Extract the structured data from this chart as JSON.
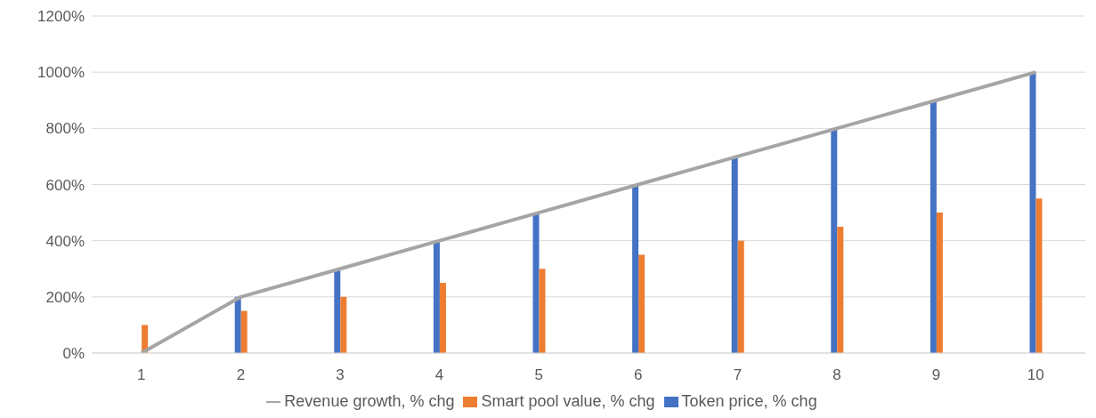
{
  "chart_data": {
    "type": "bar",
    "categories": [
      "1",
      "2",
      "3",
      "4",
      "5",
      "6",
      "7",
      "8",
      "9",
      "10"
    ],
    "series": [
      {
        "name": "Token price, % chg",
        "color": "#4472c4",
        "values": [
          0,
          200,
          300,
          400,
          500,
          600,
          700,
          800,
          900,
          1000
        ]
      },
      {
        "name": "Smart pool value, % chg",
        "color": "#ed7d31",
        "values": [
          100,
          150,
          200,
          250,
          300,
          350,
          400,
          450,
          500,
          550
        ]
      },
      {
        "name": "Revenue growth, % chg",
        "type": "line",
        "color": "#a5a5a5",
        "values": [
          0,
          200,
          300,
          400,
          500,
          600,
          700,
          800,
          900,
          1000
        ]
      }
    ],
    "ylim": [
      0,
      1200
    ],
    "yticks": [
      {
        "value": 0,
        "label": "0%"
      },
      {
        "value": 200,
        "label": "200%"
      },
      {
        "value": 400,
        "label": "400%"
      },
      {
        "value": 600,
        "label": "600%"
      },
      {
        "value": 800,
        "label": "800%"
      },
      {
        "value": 1000,
        "label": "1000%"
      },
      {
        "value": 1200,
        "label": "1200%"
      }
    ],
    "grid": "y",
    "legend": "bottom",
    "marker": "none"
  }
}
